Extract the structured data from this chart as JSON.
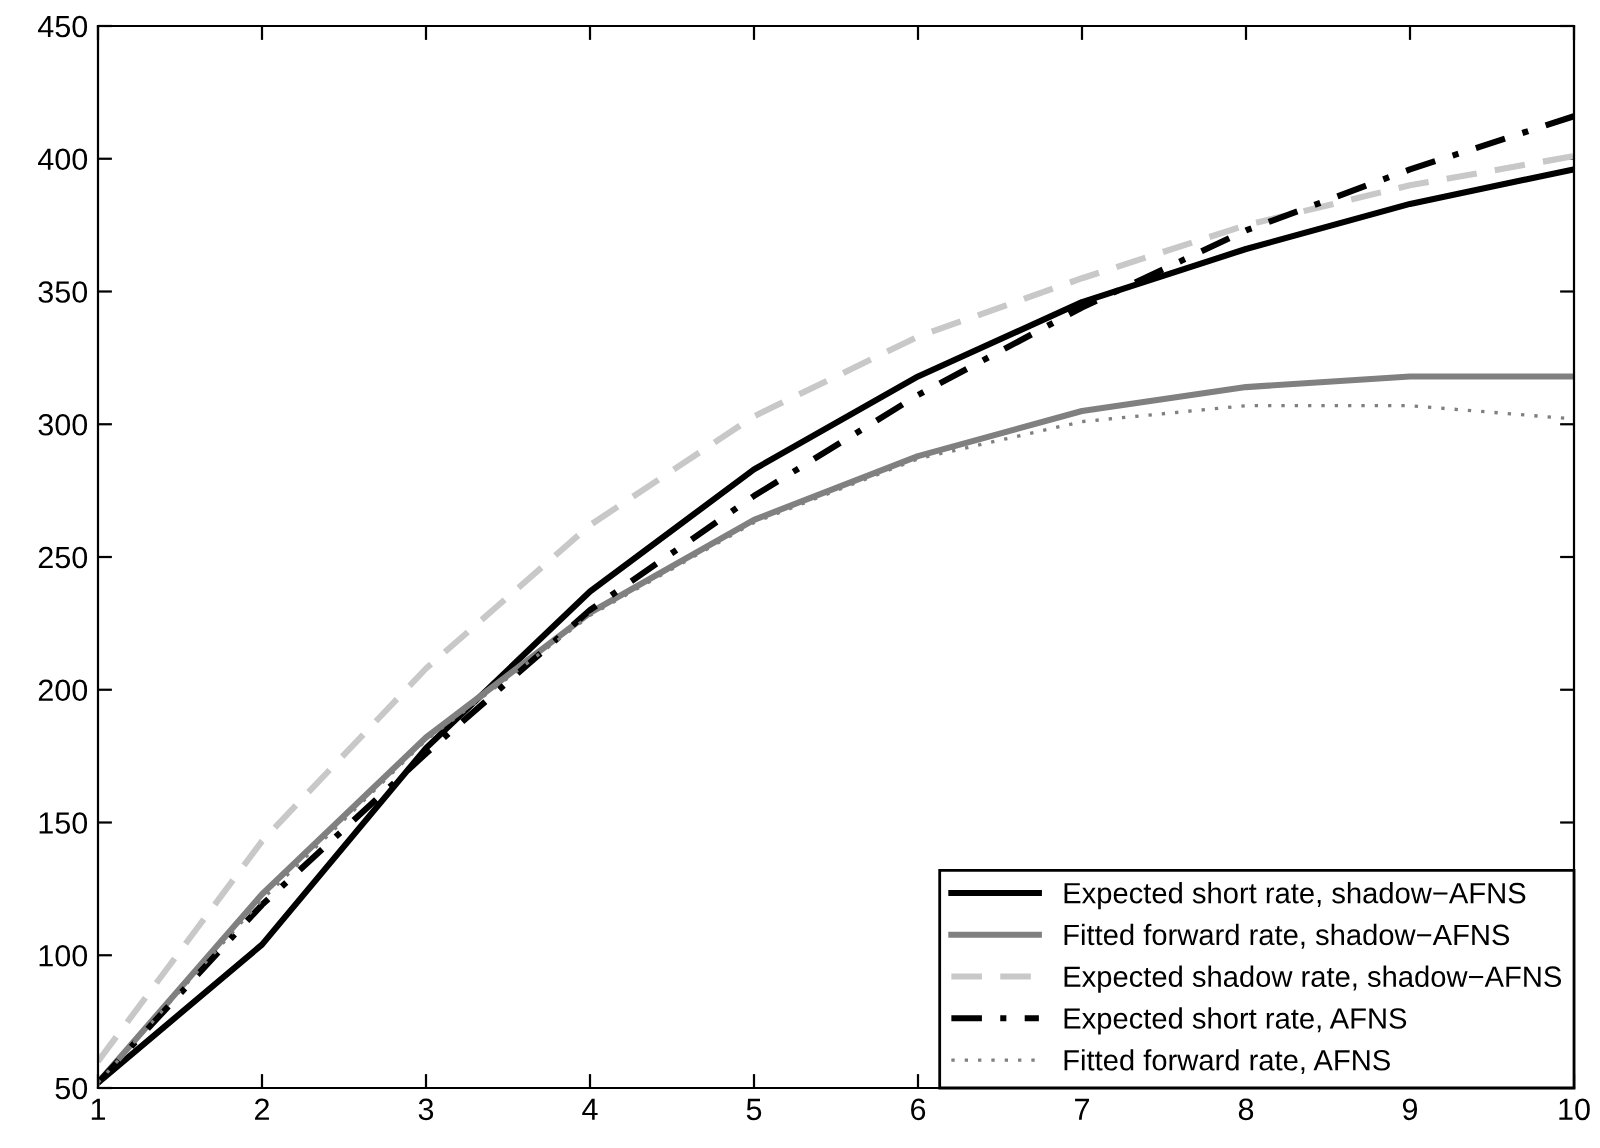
{
  "chart_data": {
    "type": "line",
    "x": [
      1,
      2,
      3,
      4,
      5,
      6,
      7,
      8,
      9,
      10
    ],
    "xlim": [
      1,
      10
    ],
    "xticks": [
      1,
      2,
      3,
      4,
      5,
      6,
      7,
      8,
      9,
      10
    ],
    "ylim": [
      50,
      450
    ],
    "yticks": [
      50,
      100,
      150,
      200,
      250,
      300,
      350,
      400,
      450
    ],
    "grid": false,
    "legend": "bottom right",
    "marker": "none",
    "series": [
      {
        "name": "Expected short rate, shadow−AFNS",
        "color": "#000000",
        "line_style": "solid",
        "values": [
          52,
          104,
          178,
          237,
          283,
          318,
          346,
          366,
          383,
          396
        ]
      },
      {
        "name": "Fitted forward rate, shadow−AFNS",
        "color": "#808080",
        "line_style": "solid",
        "values": [
          52,
          123,
          182,
          229,
          264,
          288,
          305,
          314,
          318,
          318
        ]
      },
      {
        "name": "Expected shadow rate, shadow−AFNS",
        "color": "#c8c8c8",
        "line_style": "dashed",
        "values": [
          60,
          143,
          208,
          262,
          303,
          333,
          355,
          375,
          390,
          401
        ]
      },
      {
        "name": "Expected short rate, AFNS",
        "color": "#000000",
        "line_style": "dashdot",
        "values": [
          52,
          119,
          176,
          230,
          273,
          311,
          344,
          373,
          396,
          416
        ]
      },
      {
        "name": "Fitted forward rate, AFNS",
        "color": "#808080",
        "line_style": "dotted",
        "values": [
          52,
          121,
          181,
          228,
          263,
          287,
          301,
          307,
          307,
          302
        ]
      }
    ]
  }
}
